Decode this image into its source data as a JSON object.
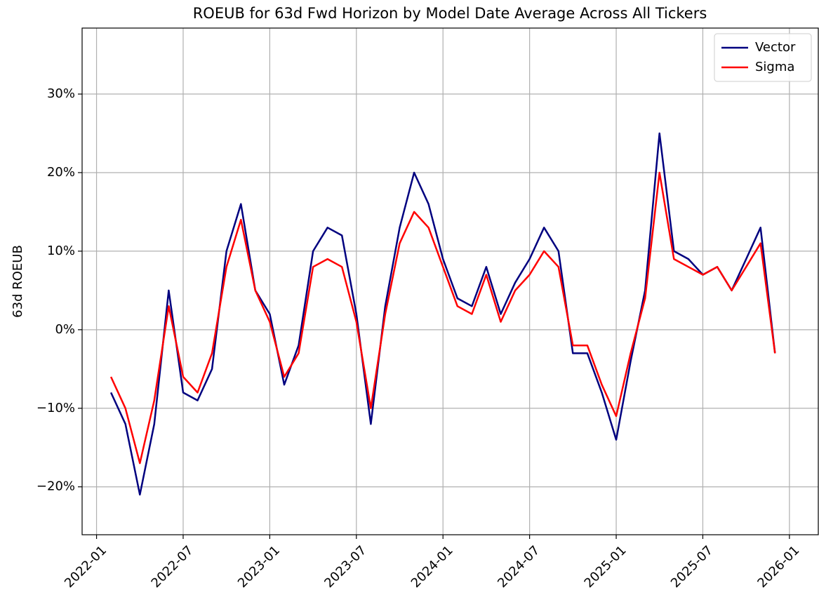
{
  "chart_data": {
    "type": "line",
    "title": "ROEUB for 63d Fwd Horizon by Model Date Average Across All Tickers",
    "ylabel": "63d ROEUB",
    "x": [
      "2022-02",
      "2022-03",
      "2022-04",
      "2022-05",
      "2022-06",
      "2022-07",
      "2022-08",
      "2022-09",
      "2022-10",
      "2022-11",
      "2022-12",
      "2023-01",
      "2023-02",
      "2023-03",
      "2023-04",
      "2023-05",
      "2023-06",
      "2023-07",
      "2023-08",
      "2023-09",
      "2023-10",
      "2023-11",
      "2023-12",
      "2024-01",
      "2024-02",
      "2024-03",
      "2024-04",
      "2024-05",
      "2024-06",
      "2024-07",
      "2024-08",
      "2024-09",
      "2024-10",
      "2024-11",
      "2024-12",
      "2025-01",
      "2025-02",
      "2025-03",
      "2025-04",
      "2025-05",
      "2025-06",
      "2025-07",
      "2025-08",
      "2025-09",
      "2025-10",
      "2025-11",
      "2025-12"
    ],
    "series": [
      {
        "name": "Vector",
        "color": "#00007f",
        "values": [
          -8,
          -12,
          -21,
          -12,
          5,
          -8,
          -9,
          -5,
          10,
          16,
          5,
          2,
          -7,
          -2,
          10,
          13,
          12,
          2,
          -12,
          3,
          13,
          20,
          16,
          9,
          4,
          3,
          8,
          2,
          6,
          9,
          13,
          10,
          -3,
          -3,
          -8,
          -14,
          -4,
          5,
          25,
          10,
          9,
          7,
          8,
          5,
          9,
          13,
          -3
        ]
      },
      {
        "name": "Sigma",
        "color": "#ff0000",
        "values": [
          -6,
          -10,
          -17,
          -9,
          3,
          -6,
          -8,
          -3,
          8,
          14,
          5,
          1,
          -6,
          -3,
          8,
          9,
          8,
          1,
          -10,
          2,
          11,
          15,
          13,
          8,
          3,
          2,
          7,
          1,
          5,
          7,
          10,
          8,
          -2,
          -2,
          -7,
          -11,
          -3,
          4,
          20,
          9,
          8,
          7,
          8,
          5,
          8,
          11,
          -3
        ]
      }
    ],
    "xlim": [
      "2021-12",
      "2026-03"
    ],
    "xticks": [
      "2022-01",
      "2022-07",
      "2023-01",
      "2023-07",
      "2024-01",
      "2024-07",
      "2025-01",
      "2025-07",
      "2026-01"
    ],
    "ylim": [
      -26.1,
      38.4
    ],
    "yticks": [
      {
        "value": -20,
        "label": "−20%"
      },
      {
        "value": -10,
        "label": "−10%"
      },
      {
        "value": 0,
        "label": "0%"
      },
      {
        "value": 10,
        "label": "10%"
      },
      {
        "value": 20,
        "label": "20%"
      },
      {
        "value": 30,
        "label": "30%"
      }
    ],
    "grid": true,
    "legend": "upper right"
  }
}
